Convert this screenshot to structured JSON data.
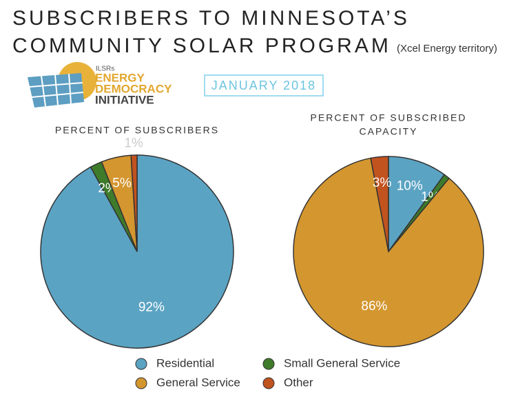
{
  "header": {
    "title": [
      "SUBSCRIBERS TO MINNESOTA’S",
      "COMMUNITY SOLAR PROGRAM"
    ],
    "subtitle": "(Xcel Energy territory)",
    "date": "JANUARY 2018",
    "logo": {
      "org": "ILSRs",
      "lines": [
        "ENERGY",
        "DEMOCRACY",
        "INITIATIVE"
      ]
    }
  },
  "chart_data": [
    {
      "type": "pie",
      "title": [
        "PERCENT OF SUBSCRIBERS"
      ],
      "categories": [
        "Residential",
        "Small General Service",
        "General Service",
        "Other"
      ],
      "values": [
        92,
        2,
        5,
        1
      ],
      "value_labels": [
        "92%",
        "2%",
        "5%",
        "1%"
      ],
      "colors": [
        "#5ba3c3",
        "#3e7b2b",
        "#d4962f",
        "#c1531f"
      ]
    },
    {
      "type": "pie",
      "title": [
        "PERCENT OF SUBSCRIBED",
        "CAPACITY"
      ],
      "categories": [
        "Residential",
        "Small General Service",
        "General Service",
        "Other"
      ],
      "values": [
        10,
        1,
        86,
        3
      ],
      "value_labels": [
        "10%",
        "1%",
        "86%",
        "3%"
      ],
      "colors": [
        "#5ba3c3",
        "#3e7b2b",
        "#d4962f",
        "#c1531f"
      ]
    }
  ]
}
